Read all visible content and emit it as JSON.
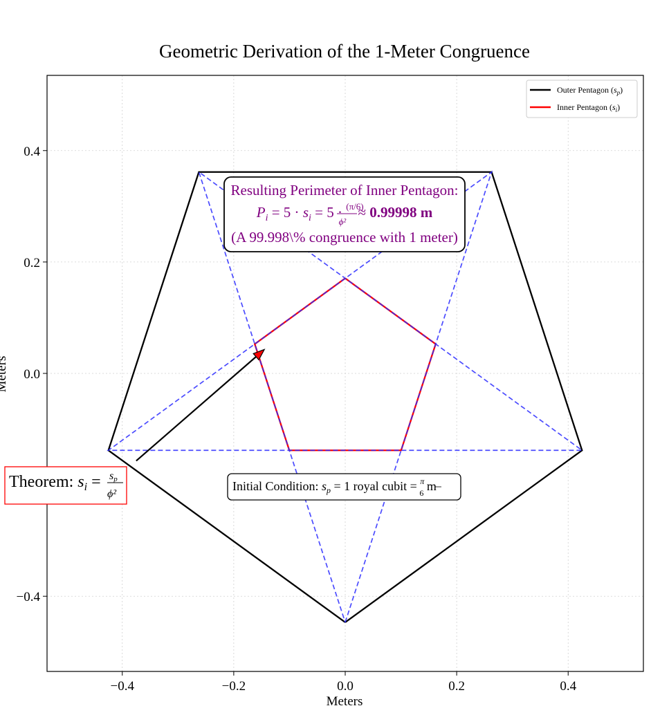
{
  "chart_data": {
    "type": "line",
    "title": "Geometric Derivation of the 1-Meter Congruence",
    "xlabel": "Meters",
    "ylabel": "Meters",
    "xlim": [
      -0.535,
      0.535
    ],
    "ylim": [
      -0.535,
      0.535
    ],
    "grid": true,
    "legend_position": "top-right",
    "x_ticks": [
      -0.4,
      -0.2,
      0.0,
      0.2,
      0.4
    ],
    "x_tick_labels": [
      "−0.4",
      "−0.2",
      "0.0",
      "0.2",
      "0.4"
    ],
    "y_ticks": [
      -0.4,
      0.0,
      0.2,
      0.4
    ],
    "y_tick_labels": [
      "−0.4",
      "0.0",
      "0.2",
      "0.4"
    ],
    "series": [
      {
        "name": "Outer Pentagon (s_p)",
        "color": "#000000",
        "style": "solid",
        "x": [
          0.0,
          0.4249,
          0.2626,
          -0.2626,
          -0.4249,
          0.0
        ],
        "y": [
          -0.4468,
          -0.1381,
          0.3615,
          0.3615,
          -0.1381,
          -0.4468
        ]
      },
      {
        "name": "Inner Pentagon (s_i)",
        "color": "#ff0000",
        "style": "solid",
        "x": [
          0.0,
          0.1623,
          0.1003,
          -0.1003,
          -0.1623,
          0.0
        ],
        "y": [
          0.1707,
          0.0527,
          -0.1381,
          -0.1381,
          0.0527,
          0.1707
        ]
      },
      {
        "color": "#2b2bff",
        "style": "dashed",
        "x": [
          0.0,
          0.2626,
          -0.4249,
          0.4249,
          -0.2626,
          0.0
        ],
        "y": [
          -0.4468,
          0.3615,
          -0.1381,
          -0.1381,
          0.3615,
          -0.4468
        ]
      }
    ],
    "legend": [
      {
        "label": "Outer Pentagon (",
        "var": "s",
        "sub": "p",
        "close": ")",
        "color": "#000000"
      },
      {
        "label": "Inner Pentagon (",
        "var": "s",
        "sub": "i",
        "close": ")",
        "color": "#ff0000"
      }
    ],
    "annotations": {
      "perimeter_box": {
        "line1": "Resulting Perimeter of Inner Pentagon:",
        "formula_lhs": "P",
        "formula_lhs_sub": "i",
        "formula_mid": " = 5 · ",
        "formula_var": "s",
        "formula_var_sub": "i",
        "formula_mid2": " = 5 · ",
        "frac_num": "(π/6)",
        "frac_den": "ϕ²",
        "approx": " ≈ ",
        "result": "0.99998 m",
        "line3": "(A 99.998\\% congruence with 1 meter)",
        "color": "#800080"
      },
      "initial_condition": {
        "prefix": "Initial Condition: ",
        "var": "s",
        "sub": "p",
        "mid": " = 1 royal cubit = ",
        "frac_num": "π",
        "frac_den": "6",
        "unit": " m"
      },
      "theorem": {
        "prefix": "Theorem: ",
        "var": "s",
        "sub": "i",
        "eq": " = ",
        "frac_num_var": "s",
        "frac_num_sub": "p",
        "frac_den": "ϕ²",
        "color": "#ff0000"
      },
      "arrow": {
        "from": [
          -0.375,
          -0.157
        ],
        "to": [
          -0.145,
          0.043
        ],
        "head_color": "#ff0000"
      }
    }
  }
}
